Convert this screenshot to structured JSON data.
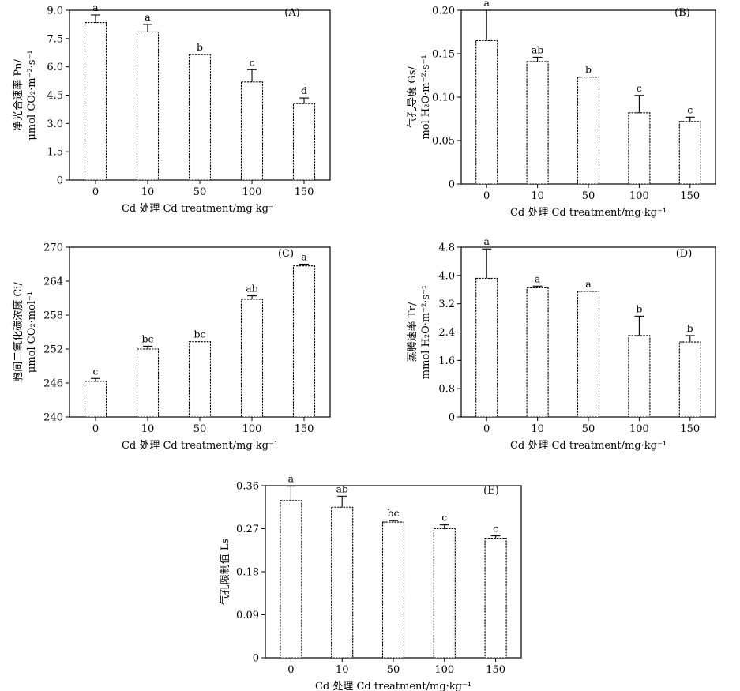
{
  "chart_data": [
    {
      "id": "A",
      "type": "bar",
      "panel_label": "(A)",
      "categories": [
        "0",
        "10",
        "50",
        "100",
        "150"
      ],
      "values": [
        8.35,
        7.85,
        6.65,
        5.2,
        4.05
      ],
      "errors": [
        0.4,
        0.4,
        0.0,
        0.65,
        0.3
      ],
      "significance": [
        "a",
        "a",
        "b",
        "c",
        "d"
      ],
      "ylim": [
        0,
        9.0
      ],
      "yticks": [
        "0",
        "1.5",
        "3.0",
        "4.5",
        "6.0",
        "7.5",
        "9.0"
      ],
      "ytick_values": [
        0,
        1.5,
        3.0,
        4.5,
        6.0,
        7.5,
        9.0
      ],
      "ylabel_lines": [
        "净光合速率 Pn/",
        "μmol CO₂·m⁻²·s⁻¹"
      ],
      "xlabel": "Cd 处理 Cd treatment/mg·kg⁻¹"
    },
    {
      "id": "B",
      "type": "bar",
      "panel_label": "(B)",
      "categories": [
        "0",
        "10",
        "50",
        "100",
        "150"
      ],
      "values": [
        0.165,
        0.141,
        0.123,
        0.082,
        0.072
      ],
      "errors": [
        0.035,
        0.005,
        0.0,
        0.02,
        0.005
      ],
      "significance": [
        "a",
        "ab",
        "b",
        "c",
        "c"
      ],
      "ylim": [
        0,
        0.2
      ],
      "yticks": [
        "0",
        "0.05",
        "0.10",
        "0.15",
        "0.20"
      ],
      "ytick_values": [
        0,
        0.05,
        0.1,
        0.15,
        0.2
      ],
      "ylabel_lines": [
        "气孔导度 Gs/",
        "mol H₂O·m⁻²·s⁻¹"
      ],
      "xlabel": "Cd 处理 Cd treatment/mg·kg⁻¹"
    },
    {
      "id": "C",
      "type": "bar",
      "panel_label": "(C)",
      "categories": [
        "0",
        "10",
        "50",
        "100",
        "150"
      ],
      "values": [
        246.3,
        252.0,
        253.3,
        260.8,
        266.7
      ],
      "errors": [
        0.5,
        0.5,
        0.0,
        0.6,
        0.3
      ],
      "significance": [
        "c",
        "bc",
        "bc",
        "ab",
        "a"
      ],
      "ylim": [
        240,
        270
      ],
      "yticks": [
        "240",
        "246",
        "252",
        "258",
        "264",
        "270"
      ],
      "ytick_values": [
        240,
        246,
        252,
        258,
        264,
        270
      ],
      "ylabel_lines": [
        "胞间二氧化碳浓度 Ci/",
        "μmol CO₂·mol⁻¹"
      ],
      "xlabel": "Cd 处理 Cd treatment/mg·kg⁻¹"
    },
    {
      "id": "D",
      "type": "bar",
      "panel_label": "(D)",
      "categories": [
        "0",
        "10",
        "50",
        "100",
        "150"
      ],
      "values": [
        3.92,
        3.65,
        3.55,
        2.3,
        2.12
      ],
      "errors": [
        0.83,
        0.05,
        0.0,
        0.55,
        0.18
      ],
      "significance": [
        "a",
        "a",
        "a",
        "b",
        "b"
      ],
      "ylim": [
        0,
        4.8
      ],
      "yticks": [
        "0",
        "0.8",
        "1.6",
        "2.4",
        "3.2",
        "4.0",
        "4.8"
      ],
      "ytick_values": [
        0,
        0.8,
        1.6,
        2.4,
        3.2,
        4.0,
        4.8
      ],
      "ylabel_lines": [
        "蒸腾速率 Tr/",
        "mmol H₂O·m⁻²·s⁻¹"
      ],
      "xlabel": "Cd 处理 Cd treatment/mg·kg⁻¹"
    },
    {
      "id": "E",
      "type": "bar",
      "panel_label": "(E)",
      "categories": [
        "0",
        "10",
        "50",
        "100",
        "150"
      ],
      "values": [
        0.329,
        0.315,
        0.284,
        0.27,
        0.25
      ],
      "errors": [
        0.03,
        0.023,
        0.003,
        0.008,
        0.005
      ],
      "significance": [
        "a",
        "ab",
        "bc",
        "c",
        "c"
      ],
      "ylim": [
        0,
        0.36
      ],
      "yticks": [
        "0",
        "0.09",
        "0.18",
        "0.27",
        "0.36"
      ],
      "ytick_values": [
        0,
        0.09,
        0.18,
        0.27,
        0.36
      ],
      "ylabel_lines": [
        "气孔限制值 Ls"
      ],
      "xlabel": "Cd 处理 Cd treatment/mg·kg⁻¹"
    }
  ]
}
